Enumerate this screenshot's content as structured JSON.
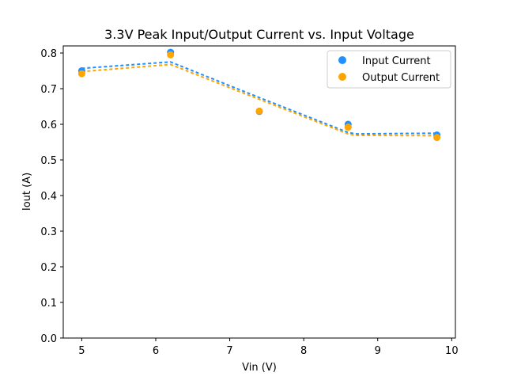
{
  "chart_data": {
    "type": "scatter",
    "title": "3.3V Peak Input/Output Current vs. Input Voltage",
    "xlabel": "Vin (V)",
    "ylabel": "Iout (A)",
    "xlim": [
      4.75,
      10.05
    ],
    "ylim": [
      0.0,
      0.82
    ],
    "xticks": [
      5,
      6,
      7,
      8,
      9,
      10
    ],
    "xtick_labels": [
      "5",
      "6",
      "7",
      "8",
      "9",
      "10"
    ],
    "yticks": [
      0.0,
      0.1,
      0.2,
      0.3,
      0.4,
      0.5,
      0.6,
      0.7,
      0.8
    ],
    "ytick_labels": [
      "0.0",
      "0.1",
      "0.2",
      "0.3",
      "0.4",
      "0.5",
      "0.6",
      "0.7",
      "0.8"
    ],
    "grid": false,
    "legend_position": "top-right",
    "series": [
      {
        "name": "Input Current",
        "color": "#1e90ff",
        "x": [
          5.0,
          6.2,
          7.4,
          8.6,
          9.8
        ],
        "y": [
          0.75,
          0.802,
          0.636,
          0.6,
          0.57
        ],
        "trend_x": [
          5.0,
          6.2,
          7.4,
          8.6,
          8.7,
          9.8
        ],
        "trend_y": [
          0.757,
          0.775,
          0.675,
          0.577,
          0.573,
          0.575
        ]
      },
      {
        "name": "Output Current",
        "color": "#ffa500",
        "x": [
          5.0,
          6.2,
          7.4,
          8.6,
          9.8
        ],
        "y": [
          0.742,
          0.795,
          0.637,
          0.592,
          0.563
        ],
        "trend_x": [
          5.0,
          6.2,
          7.4,
          8.6,
          8.7,
          9.8
        ],
        "trend_y": [
          0.748,
          0.768,
          0.67,
          0.573,
          0.569,
          0.568
        ]
      }
    ]
  }
}
